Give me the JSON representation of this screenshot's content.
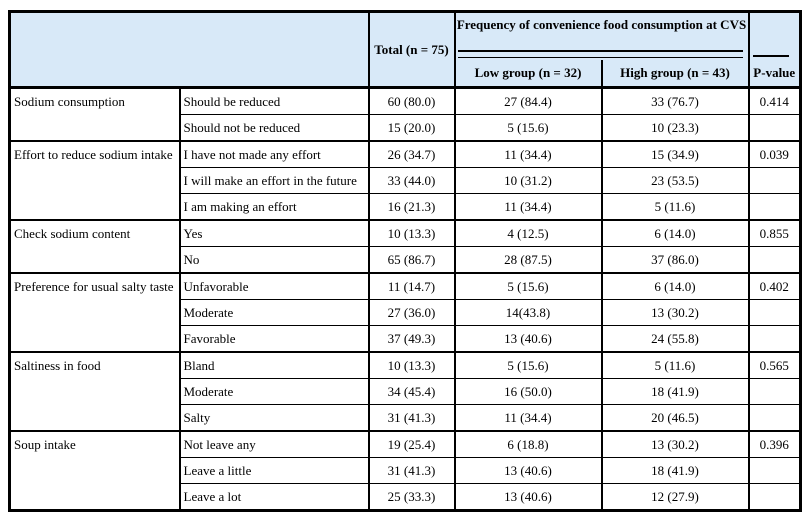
{
  "colors": {
    "header_bg": "#d8e9f8",
    "border": "#000000",
    "text": "#000000",
    "page_bg": "#ffffff"
  },
  "header": {
    "total": "Total (n = 75)",
    "spanner": "Frequency of convenience food consumption at CVS",
    "low": "Low group (n = 32)",
    "high": "High group (n = 43)",
    "pvalue": "P-value"
  },
  "groups": [
    {
      "category": "Sodium consumption",
      "p_value": "0.414",
      "rows": [
        {
          "label": "Should be reduced",
          "total": "60 (80.0)",
          "low": "27 (84.4)",
          "high": "33 (76.7)"
        },
        {
          "label": "Should not be reduced",
          "total": "15 (20.0)",
          "low": "5 (15.6)",
          "high": "10 (23.3)"
        }
      ]
    },
    {
      "category": "Effort to reduce sodium intake",
      "p_value": "0.039",
      "rows": [
        {
          "label": "I have not made any effort",
          "total": "26 (34.7)",
          "low": "11 (34.4)",
          "high": "15 (34.9)"
        },
        {
          "label": "I will make an effort in the future",
          "total": "33 (44.0)",
          "low": "10 (31.2)",
          "high": "23 (53.5)"
        },
        {
          "label": "I am making an effort",
          "total": "16 (21.3)",
          "low": "11 (34.4)",
          "high": "5 (11.6)"
        }
      ]
    },
    {
      "category": "Check sodium content",
      "p_value": "0.855",
      "rows": [
        {
          "label": "Yes",
          "total": "10 (13.3)",
          "low": "4 (12.5)",
          "high": "6 (14.0)"
        },
        {
          "label": "No",
          "total": "65 (86.7)",
          "low": "28 (87.5)",
          "high": "37 (86.0)"
        }
      ]
    },
    {
      "category": "Preference for usual salty taste",
      "p_value": "0.402",
      "rows": [
        {
          "label": "Unfavorable",
          "total": "11 (14.7)",
          "low": "5 (15.6)",
          "high": "6 (14.0)"
        },
        {
          "label": "Moderate",
          "total": "27 (36.0)",
          "low": "14(43.8)",
          "high": "13 (30.2)"
        },
        {
          "label": "Favorable",
          "total": "37 (49.3)",
          "low": "13 (40.6)",
          "high": "24 (55.8)"
        }
      ]
    },
    {
      "category": "Saltiness in food",
      "p_value": "0.565",
      "rows": [
        {
          "label": "Bland",
          "total": "10 (13.3)",
          "low": "5 (15.6)",
          "high": "5 (11.6)"
        },
        {
          "label": "Moderate",
          "total": "34 (45.4)",
          "low": "16 (50.0)",
          "high": "18 (41.9)"
        },
        {
          "label": "Salty",
          "total": "31 (41.3)",
          "low": "11 (34.4)",
          "high": "20 (46.5)"
        }
      ]
    },
    {
      "category": "Soup intake",
      "p_value": "0.396",
      "rows": [
        {
          "label": "Not leave any",
          "total": "19 (25.4)",
          "low": "6 (18.8)",
          "high": "13 (30.2)"
        },
        {
          "label": "Leave a little",
          "total": "31 (41.3)",
          "low": "13 (40.6)",
          "high": "18 (41.9)"
        },
        {
          "label": "Leave a lot",
          "total": "25 (33.3)",
          "low": "13 (40.6)",
          "high": "12 (27.9)"
        }
      ]
    }
  ]
}
